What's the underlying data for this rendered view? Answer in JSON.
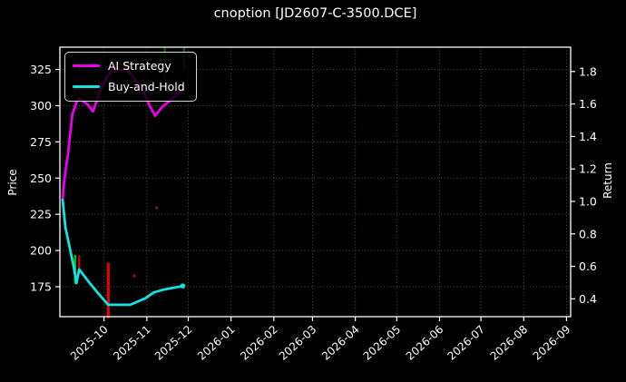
{
  "figure": {
    "title": "cnoption [JD2607-C-3500.DCE]"
  },
  "chart_data": {
    "type": "line",
    "title": "cnoption [JD2607-C-3500.DCE]",
    "ylabel_left": "Price",
    "ylabel_right": "Return",
    "theme": {
      "background": "#000000",
      "text_color": "#ffffff",
      "grid_color": "#4f4f4f",
      "spine_color": "#ffffff",
      "legend_border": "#d4d4d4"
    },
    "grid": true,
    "legend_position": "upper-left",
    "xlim": [
      "2025-08-30",
      "2026-09-04"
    ],
    "x_ticks": [
      "2025-10",
      "2025-11",
      "2025-12",
      "2026-01",
      "2026-02",
      "2026-03",
      "2026-04",
      "2026-05",
      "2026-06",
      "2026-07",
      "2026-08",
      "2026-09"
    ],
    "ylim_left": [
      154.3,
      340.4
    ],
    "yticks_left": [
      175,
      200,
      225,
      250,
      275,
      300,
      325
    ],
    "ylim_right": [
      0.29,
      1.95
    ],
    "yticks_right": [
      0.4,
      0.6,
      0.8,
      1.0,
      1.2,
      1.4,
      1.6,
      1.8
    ],
    "series": [
      {
        "name": "AI Strategy",
        "slug": "ai-strategy",
        "color": "#ea00ea",
        "axis": "left",
        "end_marker": false,
        "points": [
          [
            "2025-09-01",
            235.0
          ],
          [
            "2025-09-02",
            247.5
          ],
          [
            "2025-09-05",
            267.5
          ],
          [
            "2025-09-07",
            285.0
          ],
          [
            "2025-09-08",
            294.0
          ],
          [
            "2025-09-11",
            302.5
          ],
          [
            "2025-09-13",
            305.0
          ],
          [
            "2025-09-19",
            301.0
          ],
          [
            "2025-09-23",
            296.0
          ],
          [
            "2025-09-28",
            310.0
          ],
          [
            "2025-10-03",
            320.0
          ],
          [
            "2025-10-08",
            325.0
          ],
          [
            "2025-10-18",
            325.0
          ],
          [
            "2025-10-24",
            317.0
          ],
          [
            "2025-10-30",
            309.0
          ],
          [
            "2025-11-03",
            300.0
          ],
          [
            "2025-11-07",
            293.0
          ],
          [
            "2025-11-12",
            299.0
          ],
          [
            "2025-11-17",
            303.0
          ],
          [
            "2025-11-23",
            307.5
          ],
          [
            "2025-11-28",
            312.0
          ]
        ]
      },
      {
        "name": "Buy-and-Hold",
        "slug": "buy-and-hold",
        "color": "#12e2e2",
        "axis": "left",
        "end_marker": true,
        "points": [
          [
            "2025-09-01",
            235.0
          ],
          [
            "2025-09-03",
            216.0
          ],
          [
            "2025-09-09",
            189.0
          ],
          [
            "2025-09-11",
            177.5
          ],
          [
            "2025-09-13",
            187.0
          ],
          [
            "2025-09-21",
            177.0
          ],
          [
            "2025-09-28",
            169.0
          ],
          [
            "2025-10-04",
            162.5
          ],
          [
            "2025-10-20",
            162.5
          ],
          [
            "2025-10-31",
            167.0
          ],
          [
            "2025-11-06",
            171.0
          ],
          [
            "2025-11-13",
            173.0
          ],
          [
            "2025-11-27",
            175.5
          ]
        ]
      }
    ],
    "signals": [
      {
        "kind": "vline",
        "date": "2025-09-10",
        "price_from": 177.0,
        "price_to": 197.0,
        "color": "#00c400",
        "alpha": 1,
        "width": 2.4
      },
      {
        "kind": "vline",
        "date": "2025-09-13",
        "price_from": 188.0,
        "price_to": 196.5,
        "color": "#e60000",
        "alpha": 1,
        "width": 2.2
      },
      {
        "kind": "vline",
        "date": "2025-10-04",
        "price_from": 153.2,
        "price_to": 191.5,
        "color": "#e60000",
        "alpha": 1,
        "width": 3.2
      },
      {
        "kind": "dot",
        "date": "2025-10-23",
        "price": 182.5,
        "color": "#a01616",
        "alpha": 0.9
      },
      {
        "kind": "dot",
        "date": "2025-11-08",
        "price": 229.5,
        "color": "#a01616",
        "alpha": 0.8
      },
      {
        "kind": "vline",
        "date": "2025-11-14",
        "price_from": 309.0,
        "price_to": 340.4,
        "color": "#0f5a0f",
        "alpha": 0.95,
        "width": 2.2
      },
      {
        "kind": "vline",
        "date": "2025-11-28",
        "price_from": 325.0,
        "price_to": 340.4,
        "color": "#0f5a0f",
        "alpha": 0.95,
        "width": 2.2
      }
    ]
  }
}
